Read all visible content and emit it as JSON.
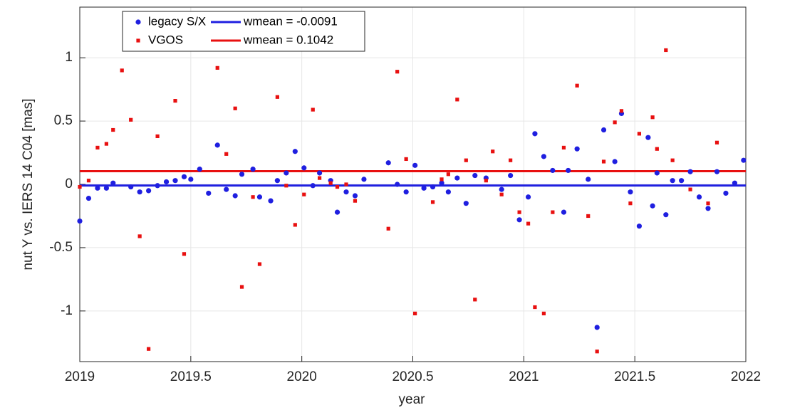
{
  "chart_data": {
    "type": "scatter",
    "x_label": "year",
    "y_label": "nut Y vs. IERS 14 C04 [mas]",
    "xlim": [
      2019,
      2022
    ],
    "xticks": [
      2019,
      2019.5,
      2020,
      2020.5,
      2021,
      2021.5,
      2022
    ],
    "ylim": [
      -1.4,
      1.4
    ],
    "yticks": [
      -1,
      -0.5,
      0,
      0.5,
      1
    ],
    "grid": true,
    "legend": "top-left",
    "series": [
      {
        "name": "legacy S/X",
        "color": "#1f1fe0",
        "marker": "circle",
        "x": [
          2019.0,
          2019.04,
          2019.08,
          2019.12,
          2019.15,
          2019.23,
          2019.27,
          2019.31,
          2019.35,
          2019.39,
          2019.43,
          2019.47,
          2019.5,
          2019.54,
          2019.58,
          2019.62,
          2019.66,
          2019.7,
          2019.73,
          2019.78,
          2019.81,
          2019.86,
          2019.89,
          2019.93,
          2019.97,
          2020.01,
          2020.05,
          2020.08,
          2020.13,
          2020.16,
          2020.2,
          2020.24,
          2020.28,
          2020.39,
          2020.43,
          2020.47,
          2020.51,
          2020.55,
          2020.59,
          2020.63,
          2020.66,
          2020.7,
          2020.74,
          2020.78,
          2020.83,
          2020.9,
          2020.94,
          2020.98,
          2021.02,
          2021.05,
          2021.09,
          2021.13,
          2021.18,
          2021.2,
          2021.24,
          2021.29,
          2021.33,
          2021.36,
          2021.41,
          2021.44,
          2021.48,
          2021.52,
          2021.56,
          2021.58,
          2021.6,
          2021.64,
          2021.67,
          2021.71,
          2021.75,
          2021.79,
          2021.83,
          2021.87,
          2021.91,
          2021.95,
          2021.99
        ],
        "values": [
          -0.29,
          -0.11,
          -0.03,
          -0.03,
          0.01,
          -0.02,
          -0.06,
          -0.05,
          -0.01,
          0.02,
          0.03,
          0.06,
          0.04,
          0.12,
          -0.07,
          0.31,
          -0.04,
          -0.09,
          0.08,
          0.12,
          -0.1,
          -0.13,
          0.03,
          0.09,
          0.26,
          0.13,
          -0.01,
          0.09,
          0.03,
          -0.22,
          -0.06,
          -0.09,
          0.04,
          0.17,
          0.0,
          -0.06,
          0.15,
          -0.03,
          -0.02,
          0.01,
          -0.06,
          0.05,
          -0.15,
          0.07,
          0.05,
          -0.04,
          0.07,
          -0.28,
          -0.1,
          0.4,
          0.22,
          0.11,
          -0.22,
          0.11,
          0.28,
          0.04,
          -1.13,
          0.43,
          0.18,
          0.56,
          -0.06,
          -0.33,
          0.37,
          -0.17,
          0.09,
          -0.24,
          0.03,
          0.03,
          0.1,
          -0.1,
          -0.19,
          0.1,
          -0.07,
          0.01,
          0.19
        ]
      },
      {
        "name": "VGOS",
        "color": "#e81010",
        "marker": "square",
        "x": [
          2019.0,
          2019.04,
          2019.08,
          2019.12,
          2019.15,
          2019.19,
          2019.23,
          2019.27,
          2019.31,
          2019.35,
          2019.43,
          2019.47,
          2019.62,
          2019.66,
          2019.7,
          2019.73,
          2019.78,
          2019.81,
          2019.89,
          2019.93,
          2019.97,
          2020.01,
          2020.05,
          2020.08,
          2020.13,
          2020.16,
          2020.2,
          2020.24,
          2020.39,
          2020.43,
          2020.47,
          2020.51,
          2020.59,
          2020.63,
          2020.66,
          2020.7,
          2020.74,
          2020.78,
          2020.83,
          2020.86,
          2020.9,
          2020.94,
          2020.98,
          2021.02,
          2021.05,
          2021.09,
          2021.13,
          2021.18,
          2021.24,
          2021.29,
          2021.33,
          2021.36,
          2021.41,
          2021.44,
          2021.48,
          2021.52,
          2021.58,
          2021.6,
          2021.64,
          2021.67,
          2021.75,
          2021.83,
          2021.87
        ],
        "values": [
          -0.02,
          0.03,
          0.29,
          0.32,
          0.43,
          0.9,
          0.51,
          -0.41,
          -1.3,
          0.38,
          0.66,
          -0.55,
          0.92,
          0.24,
          0.6,
          -0.81,
          -0.1,
          -0.63,
          0.69,
          -0.01,
          -0.32,
          -0.08,
          0.59,
          0.05,
          0.01,
          -0.02,
          0.0,
          -0.13,
          -0.35,
          0.89,
          0.2,
          -1.02,
          -0.14,
          0.04,
          0.08,
          0.67,
          0.19,
          -0.91,
          0.03,
          0.26,
          -0.08,
          0.19,
          -0.22,
          -0.31,
          -0.97,
          -1.02,
          -0.22,
          0.29,
          0.78,
          -0.25,
          -1.32,
          0.18,
          0.49,
          0.58,
          -0.15,
          0.4,
          0.53,
          0.28,
          1.06,
          0.19,
          -0.04,
          -0.15,
          0.33
        ]
      }
    ],
    "lines": [
      {
        "name": "wmean = -0.0091",
        "color": "#1f1fe0",
        "value": -0.0091
      },
      {
        "name": "wmean = 0.1042",
        "color": "#e81010",
        "value": 0.1042
      }
    ]
  }
}
